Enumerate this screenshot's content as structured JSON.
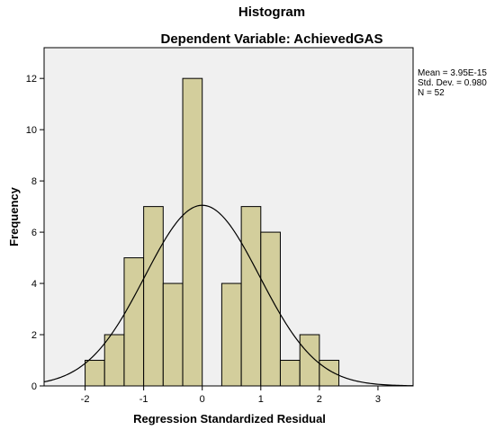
{
  "chart_data": {
    "type": "bar",
    "title": "Histogram",
    "subtitle": "Dependent Variable: AchievedGAS",
    "xlabel": "Regression Standardized Residual",
    "ylabel": "Frequency",
    "xlim": [
      -2.7,
      3.6
    ],
    "ylim": [
      0,
      13.2
    ],
    "x_ticks": [
      -2,
      -1,
      0,
      1,
      2,
      3
    ],
    "y_ticks": [
      0,
      2,
      4,
      6,
      8,
      10,
      12
    ],
    "bin_width": 0.333,
    "bins": [
      {
        "start": -2.0,
        "count": 1
      },
      {
        "start": -1.667,
        "count": 2
      },
      {
        "start": -1.333,
        "count": 5
      },
      {
        "start": -1.0,
        "count": 7
      },
      {
        "start": -0.667,
        "count": 4
      },
      {
        "start": -0.333,
        "count": 12
      },
      {
        "start": 0.333,
        "count": 4
      },
      {
        "start": 0.667,
        "count": 7
      },
      {
        "start": 1.0,
        "count": 6
      },
      {
        "start": 1.333,
        "count": 1
      },
      {
        "start": 1.667,
        "count": 2
      },
      {
        "start": 2.0,
        "count": 1
      }
    ],
    "normal_curve": {
      "mean": 0,
      "sd": 0.98,
      "n": 52
    },
    "stats": {
      "mean": "Mean = 3.95E-15",
      "sd": "Std. Dev. = 0.980",
      "n": "N = 52"
    },
    "grid": false,
    "bar_color": "#d3ce9c",
    "bar_edge_color": "#000000",
    "plot_bg_color": "#f0f0f0",
    "curve_color": "#000000"
  }
}
